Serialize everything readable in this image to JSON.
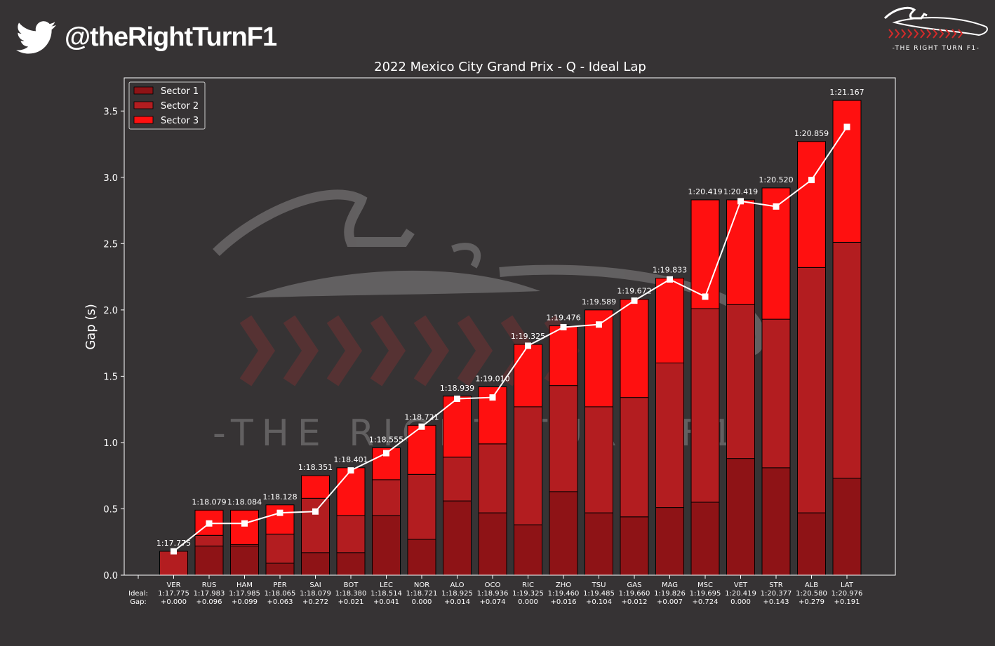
{
  "header": {
    "twitter_handle": "@theRightTurnF1",
    "logo_text": "-THE RIGHT TURN F1-",
    "icons": [
      "twitter-bird-icon",
      "right-turn-logo"
    ]
  },
  "watermark_text": "-THE RIGHT TURN F1-",
  "colors": {
    "background": "#363334",
    "sector1": "#8E1316",
    "sector2": "#B31D20",
    "sector3": "#FF1010",
    "line": "#ffffff"
  },
  "chart_data": {
    "type": "bar",
    "stacked": true,
    "title": "2022 Mexico City Grand Prix - Q - Ideal Lap",
    "ylabel": "Gap (s)",
    "xlabel": "",
    "ylim": [
      0,
      3.75
    ],
    "yticks": [
      "0.0",
      "0.5",
      "1.0",
      "1.5",
      "2.0",
      "2.5",
      "3.0",
      "3.5"
    ],
    "row_labels": [
      "Ideal:",
      "Gap:"
    ],
    "legend": {
      "position": "top-left",
      "entries": [
        "Sector 1",
        "Sector 2",
        "Sector 3"
      ]
    },
    "categories": [
      "VER",
      "RUS",
      "HAM",
      "PER",
      "SAI",
      "BOT",
      "LEC",
      "NOR",
      "ALO",
      "OCO",
      "RIC",
      "ZHO",
      "TSU",
      "GAS",
      "MAG",
      "MSC",
      "VET",
      "STR",
      "ALB",
      "LAT"
    ],
    "ideal_labels": [
      "1:17.775",
      "1:17.983",
      "1:17.985",
      "1:18.065",
      "1:18.079",
      "1:18.380",
      "1:18.514",
      "1:18.721",
      "1:18.925",
      "1:18.936",
      "1:19.325",
      "1:19.460",
      "1:19.485",
      "1:19.660",
      "1:19.826",
      "1:19.695",
      "1:20.419",
      "1:20.377",
      "1:20.580",
      "1:20.976"
    ],
    "gap_labels": [
      "+0.000",
      "+0.096",
      "+0.099",
      "+0.063",
      "+0.272",
      "+0.021",
      "+0.041",
      "0.000",
      "+0.014",
      "+0.074",
      "0.000",
      "+0.016",
      "+0.104",
      "+0.012",
      "+0.007",
      "+0.724",
      "0.000",
      "+0.143",
      "+0.279",
      "+0.191"
    ],
    "top_labels": [
      "1:17.775",
      "1:18.079",
      "1:18.084",
      "1:18.128",
      "1:18.351",
      "1:18.401",
      "1:18.555",
      "1:18.721",
      "1:18.939",
      "1:19.010",
      "1:19.325",
      "1:19.476",
      "1:19.589",
      "1:19.672",
      "1:19.833",
      "1:20.419",
      "1:20.419",
      "1:20.520",
      "1:20.859",
      "1:21.167"
    ],
    "series": [
      {
        "name": "Sector 1",
        "values": [
          0.0,
          0.22,
          0.22,
          0.09,
          0.17,
          0.17,
          0.45,
          0.27,
          0.56,
          0.47,
          0.38,
          0.63,
          0.47,
          0.44,
          0.51,
          0.55,
          0.88,
          0.81,
          0.47,
          0.73
        ]
      },
      {
        "name": "Sector 2",
        "values": [
          0.18,
          0.08,
          0.01,
          0.22,
          0.41,
          0.28,
          0.27,
          0.49,
          0.33,
          0.52,
          0.89,
          0.8,
          0.8,
          0.9,
          1.09,
          1.46,
          1.16,
          1.12,
          1.85,
          1.78
        ]
      },
      {
        "name": "Sector 3",
        "values": [
          0.0,
          0.19,
          0.26,
          0.22,
          0.17,
          0.36,
          0.24,
          0.37,
          0.46,
          0.43,
          0.47,
          0.45,
          0.73,
          0.74,
          0.64,
          0.82,
          0.79,
          0.99,
          0.95,
          1.07
        ]
      }
    ],
    "line": {
      "values": [
        0.18,
        0.39,
        0.39,
        0.47,
        0.48,
        0.79,
        0.92,
        1.12,
        1.33,
        1.34,
        1.73,
        1.87,
        1.89,
        2.07,
        2.23,
        2.1,
        2.82,
        2.78,
        2.98,
        3.38
      ]
    }
  }
}
